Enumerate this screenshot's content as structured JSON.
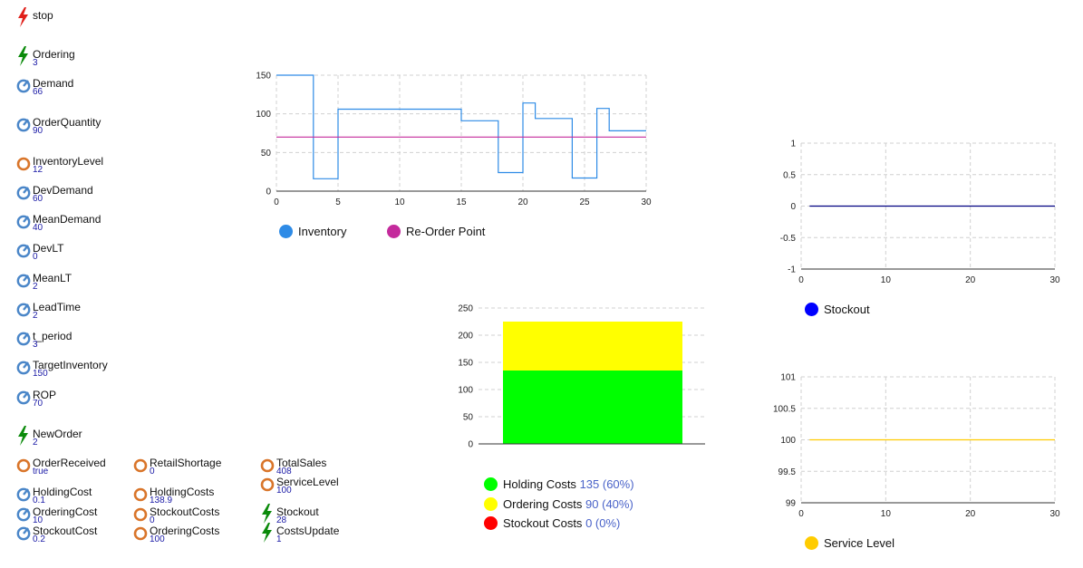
{
  "variables": {
    "stop": {
      "name": "stop",
      "icon": "lightning-red-icon"
    },
    "ordering": {
      "name": "Ordering",
      "value": "3",
      "icon": "lightning-green-icon"
    },
    "demand": {
      "name": "Demand",
      "value": "66",
      "icon": "parameter-gauge-icon"
    },
    "order_quantity": {
      "name": "OrderQuantity",
      "value": "90",
      "icon": "parameter-gauge-icon"
    },
    "inventory_level": {
      "name": "InventoryLevel",
      "value": "12",
      "icon": "variable-circle-icon"
    },
    "dev_demand": {
      "name": "DevDemand",
      "value": "60",
      "icon": "parameter-gauge-icon"
    },
    "mean_demand": {
      "name": "MeanDemand",
      "value": "40",
      "icon": "parameter-gauge-icon"
    },
    "dev_lt": {
      "name": "DevLT",
      "value": "0",
      "icon": "parameter-gauge-icon"
    },
    "mean_lt": {
      "name": "MeanLT",
      "value": "2",
      "icon": "parameter-gauge-icon"
    },
    "lead_time": {
      "name": "LeadTime",
      "value": "2",
      "icon": "parameter-gauge-icon"
    },
    "t_period": {
      "name": "t_period",
      "value": "3",
      "icon": "parameter-gauge-icon"
    },
    "target_inventory": {
      "name": "TargetInventory",
      "value": "150",
      "icon": "parameter-gauge-icon"
    },
    "rop": {
      "name": "ROP",
      "value": "70",
      "icon": "parameter-gauge-icon"
    },
    "new_order": {
      "name": "NewOrder",
      "value": "2",
      "icon": "lightning-green-icon"
    },
    "order_received": {
      "name": "OrderReceived",
      "value": "true",
      "icon": "variable-circle-icon"
    },
    "holding_cost": {
      "name": "HoldingCost",
      "value": "0.1",
      "icon": "parameter-gauge-icon"
    },
    "ordering_cost": {
      "name": "OrderingCost",
      "value": "10",
      "icon": "parameter-gauge-icon"
    },
    "stockout_cost": {
      "name": "StockoutCost",
      "value": "0.2",
      "icon": "parameter-gauge-icon"
    },
    "retail_shortage": {
      "name": "RetailShortage",
      "value": "0",
      "icon": "variable-circle-icon"
    },
    "holding_costs": {
      "name": "HoldingCosts",
      "value": "138.9",
      "icon": "variable-circle-icon"
    },
    "stockout_costs": {
      "name": "StockoutCosts",
      "value": "0",
      "icon": "variable-circle-icon"
    },
    "ordering_costs": {
      "name": "OrderingCosts",
      "value": "100",
      "icon": "variable-circle-icon"
    },
    "total_sales": {
      "name": "TotalSales",
      "value": "408",
      "icon": "variable-circle-icon"
    },
    "service_level": {
      "name": "ServiceLevel",
      "value": "100",
      "icon": "variable-circle-icon"
    },
    "stockout": {
      "name": "Stockout",
      "value": "28",
      "icon": "lightning-green-icon"
    },
    "costs_update": {
      "name": "CostsUpdate",
      "value": "1",
      "icon": "lightning-green-icon"
    }
  },
  "colors": {
    "inventory": "#2e8be6",
    "reorder": "#c42a9c",
    "holding": "#00ff00",
    "ordering": "#ffff00",
    "stockout_cost": "#ff0000",
    "stockout": "#0000ff",
    "service_level": "#ffcc00",
    "legend_value": "#4a63c9",
    "var_value": "#1a1aa6",
    "gauge_icon": "#4a86c8",
    "circle_icon": "#d9752a",
    "lightning_green": "#0a8a0a",
    "lightning_red": "#e0201a"
  },
  "chart_data": [
    {
      "type": "line",
      "x_ticks": [
        "0",
        "5",
        "10",
        "15",
        "20",
        "25",
        "30"
      ],
      "y_ticks": [
        "0",
        "50",
        "100",
        "150"
      ],
      "xlim": [
        0,
        30
      ],
      "ylim": [
        0,
        150
      ],
      "grid": true,
      "legend_position": "bottom",
      "series": [
        {
          "name": "Inventory",
          "step": true,
          "points": [
            [
              0,
              150
            ],
            [
              3,
              150
            ],
            [
              3,
              16
            ],
            [
              5,
              16
            ],
            [
              5,
              106
            ],
            [
              15,
              106
            ],
            [
              15,
              91
            ],
            [
              18,
              91
            ],
            [
              18,
              24
            ],
            [
              20,
              24
            ],
            [
              20,
              114
            ],
            [
              21,
              114
            ],
            [
              21,
              94
            ],
            [
              24,
              94
            ],
            [
              24,
              17
            ],
            [
              26,
              17
            ],
            [
              26,
              107
            ],
            [
              27,
              107
            ],
            [
              27,
              78
            ],
            [
              30,
              78
            ]
          ]
        },
        {
          "name": "Re-Order Point",
          "points": [
            [
              0,
              70
            ],
            [
              30,
              70
            ]
          ]
        }
      ]
    },
    {
      "type": "bar",
      "stacked": true,
      "y_ticks": [
        "0",
        "50",
        "100",
        "150",
        "200",
        "250"
      ],
      "ylim": [
        0,
        250
      ],
      "grid": true,
      "legend_position": "bottom",
      "series": [
        {
          "name": "Holding Costs",
          "value": 135,
          "label": "135 (60%)"
        },
        {
          "name": "Ordering Costs",
          "value": 90,
          "label": "90 (40%)"
        },
        {
          "name": "Stockout Costs",
          "value": 0,
          "label": "0 (0%)"
        }
      ]
    },
    {
      "type": "line",
      "x_ticks": [
        "0",
        "10",
        "20",
        "30"
      ],
      "y_ticks": [
        "1",
        "0.5",
        "0",
        "-0.5",
        "-1"
      ],
      "xlim": [
        0,
        30
      ],
      "ylim": [
        -1,
        1
      ],
      "grid": true,
      "legend_position": "bottom",
      "series": [
        {
          "name": "Stockout",
          "points": [
            [
              1,
              0
            ],
            [
              30,
              0
            ]
          ]
        }
      ]
    },
    {
      "type": "line",
      "x_ticks": [
        "0",
        "10",
        "20",
        "30"
      ],
      "y_ticks": [
        "101",
        "100.5",
        "100",
        "99.5",
        "99"
      ],
      "xlim": [
        0,
        30
      ],
      "ylim": [
        99,
        101
      ],
      "grid": true,
      "legend_position": "bottom",
      "series": [
        {
          "name": "Service Level",
          "points": [
            [
              1,
              100
            ],
            [
              30,
              100
            ]
          ]
        }
      ]
    }
  ]
}
